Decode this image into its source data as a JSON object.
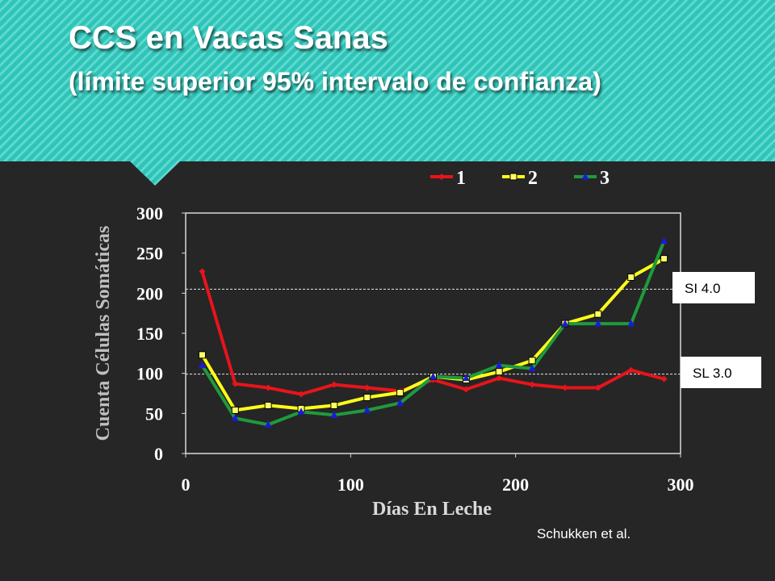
{
  "chart_data": {
    "type": "line",
    "title": "CCS en Vacas Sanas",
    "subtitle": "(límite superior 95% intervalo de confianza)",
    "x_label": "Días En Leche",
    "y_label": "Cuenta Células Somáticas",
    "source": "Schukken et al.",
    "x": [
      10,
      30,
      50,
      70,
      90,
      110,
      130,
      150,
      170,
      190,
      210,
      230,
      250,
      270,
      290
    ],
    "series": [
      {
        "name": "1",
        "color": "#e8141b",
        "marker": "diamond",
        "marker_color": "#e8141b",
        "values": [
          227,
          87,
          82,
          74,
          86,
          82,
          78,
          92,
          80,
          94,
          86,
          82,
          82,
          104,
          93
        ]
      },
      {
        "name": "2",
        "color": "#ffff1a",
        "marker": "square",
        "marker_color": "#ffff66",
        "values": [
          123,
          54,
          60,
          56,
          60,
          70,
          76,
          96,
          92,
          102,
          116,
          162,
          174,
          220,
          243
        ]
      },
      {
        "name": "3",
        "color": "#1f9a3c",
        "marker": "triangle",
        "marker_color": "#1a1ad8",
        "values": [
          110,
          44,
          36,
          52,
          48,
          54,
          63,
          96,
          94,
          110,
          106,
          162,
          162,
          162,
          265
        ]
      }
    ],
    "xlim": [
      0,
      300
    ],
    "xticks": [
      0,
      100,
      200,
      300
    ],
    "ylim": [
      0,
      300
    ],
    "yticks": [
      0,
      50,
      100,
      150,
      200,
      250,
      300
    ],
    "reference_lines": [
      {
        "label": "SI 4.0",
        "value": 205
      },
      {
        "label": "SL 3.0",
        "value": 99
      }
    ],
    "legend": "top"
  }
}
